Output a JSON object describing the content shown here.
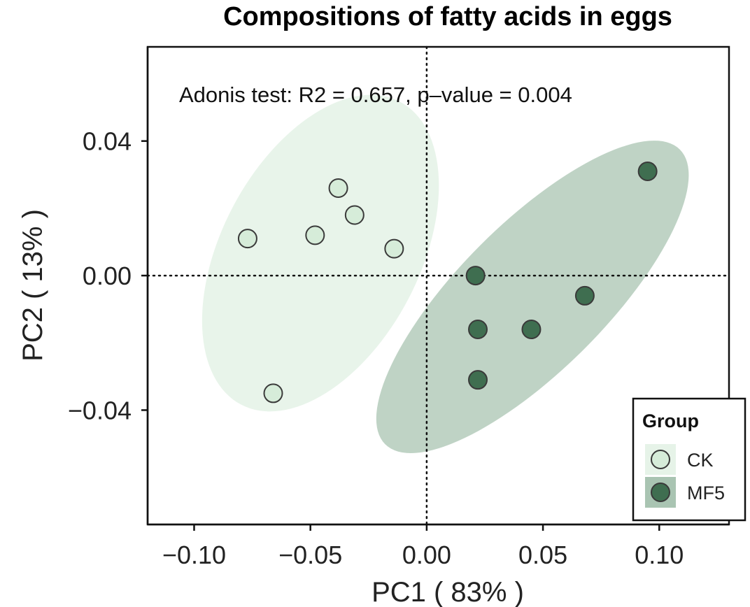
{
  "chart_data": {
    "type": "scatter",
    "title": "Compositions of fatty acids in eggs",
    "xlabel": "PC1 ( 83% )",
    "ylabel": "PC2 ( 13% )",
    "xlim": [
      -0.12,
      0.13
    ],
    "ylim": [
      -0.074,
      0.068
    ],
    "x_ticks": [
      -0.1,
      -0.05,
      0.0,
      0.05,
      0.1
    ],
    "x_tick_labels": [
      "−0.10",
      "−0.05",
      "0.00",
      "0.05",
      "0.10"
    ],
    "y_ticks": [
      -0.04,
      0.0,
      0.04
    ],
    "y_tick_labels": [
      "−0.04",
      "0.00",
      "0.04"
    ],
    "annotation": "Adonis test: R2 = 0.657, p–value = 0.004",
    "grid": false,
    "reference_lines": {
      "x": 0,
      "y": 0
    },
    "legend": {
      "title": "Group",
      "position": "bottom-right"
    },
    "series": [
      {
        "name": "CK",
        "color": "#d6ecd9",
        "ellipse_color": "#e6f3e8",
        "points": [
          {
            "x": -0.077,
            "y": 0.011
          },
          {
            "x": -0.048,
            "y": 0.012
          },
          {
            "x": -0.038,
            "y": 0.026
          },
          {
            "x": -0.031,
            "y": 0.018
          },
          {
            "x": -0.014,
            "y": 0.008
          },
          {
            "x": -0.066,
            "y": -0.035
          }
        ]
      },
      {
        "name": "MF5",
        "color": "#3f6e50",
        "ellipse_color": "#a9c4b2",
        "points": [
          {
            "x": 0.021,
            "y": 0.0
          },
          {
            "x": 0.022,
            "y": -0.016
          },
          {
            "x": 0.022,
            "y": -0.031
          },
          {
            "x": 0.045,
            "y": -0.016
          },
          {
            "x": 0.068,
            "y": -0.006
          },
          {
            "x": 0.095,
            "y": 0.031
          }
        ]
      }
    ]
  }
}
